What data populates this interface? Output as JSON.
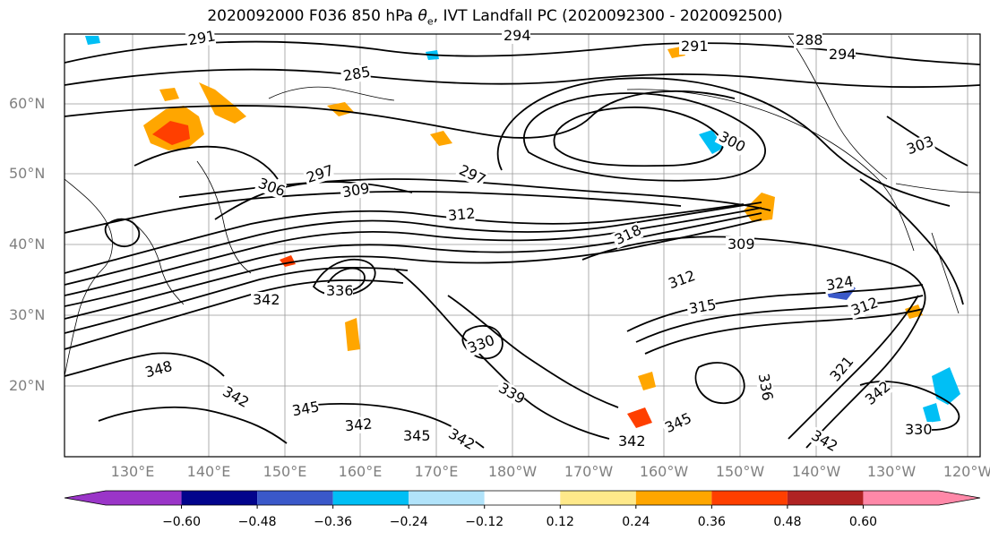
{
  "title_prefix": "2020092000 F036 850 hPa ",
  "title_symbol": "θ",
  "title_sub": "e",
  "title_suffix": ", IVT Landfall PC (2020092300 - 2020092500)",
  "lat_labels": [
    "60°N",
    "50°N",
    "40°N",
    "30°N",
    "20°N"
  ],
  "lon_labels": [
    "130°E",
    "140°E",
    "150°E",
    "160°E",
    "170°E",
    "180°W",
    "170°W",
    "160°W",
    "150°W",
    "140°W",
    "130°W",
    "120°W"
  ],
  "contour_labels": [
    "291",
    "294",
    "291",
    "288",
    "294",
    "285",
    "300",
    "303",
    "297",
    "309",
    "306",
    "297",
    "312",
    "318",
    "309",
    "312",
    "315",
    "324",
    "312",
    "342",
    "336",
    "330",
    "339",
    "348",
    "342",
    "345",
    "342",
    "345",
    "342",
    "342",
    "345",
    "342",
    "336",
    "321",
    "342",
    "330"
  ],
  "colorbar": {
    "ticks": [
      "−0.60",
      "−0.48",
      "−0.36",
      "−0.24",
      "−0.12",
      "0.12",
      "0.24",
      "0.36",
      "0.48",
      "0.60"
    ],
    "colors": [
      "#9a35c8",
      "#02048c",
      "#3a58c9",
      "#00bff5",
      "#b1e3fa",
      "#ffffff",
      "#ffe98a",
      "#ffa600",
      "#ff3f00",
      "#b02323",
      "#ff88a8"
    ]
  }
}
